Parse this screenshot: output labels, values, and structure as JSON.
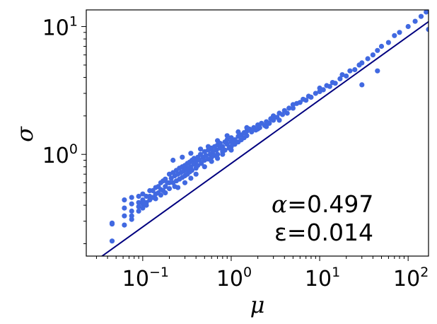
{
  "chart_data": {
    "type": "scatter",
    "title": "",
    "xlabel": "μ",
    "ylabel": "σ",
    "x_scale": "log",
    "y_scale": "log",
    "xlim": [
      0.023,
      170
    ],
    "ylim": [
      0.16,
      13.5
    ],
    "grid": false,
    "legend": "none",
    "x_ticks": [
      {
        "value": 0.1,
        "base": "10",
        "exp": "−1"
      },
      {
        "value": 1,
        "base": "10",
        "exp": "0"
      },
      {
        "value": 10,
        "base": "10",
        "exp": "1"
      },
      {
        "value": 100,
        "base": "10",
        "exp": "2"
      }
    ],
    "y_ticks": [
      {
        "value": 1,
        "base": "10",
        "exp": "0"
      },
      {
        "value": 10,
        "base": "10",
        "exp": "1"
      }
    ],
    "fit_line": {
      "slope": 0.497,
      "intercept_at_1": 0.85,
      "color": "#00007f"
    },
    "point_color": "#4169e1",
    "series": [
      {
        "points": [
          [
            0.045,
            0.29
          ],
          [
            0.045,
            0.21
          ],
          [
            0.045,
            0.285
          ],
          [
            0.062,
            0.33
          ],
          [
            0.062,
            0.44
          ],
          [
            0.062,
            0.38
          ],
          [
            0.062,
            0.28
          ],
          [
            0.075,
            0.46
          ],
          [
            0.075,
            0.41
          ],
          [
            0.075,
            0.36
          ],
          [
            0.075,
            0.33
          ],
          [
            0.075,
            0.31
          ],
          [
            0.09,
            0.47
          ],
          [
            0.09,
            0.42
          ],
          [
            0.09,
            0.39
          ],
          [
            0.09,
            0.36
          ],
          [
            0.1,
            0.49
          ],
          [
            0.1,
            0.44
          ],
          [
            0.1,
            0.41
          ],
          [
            0.1,
            0.38
          ],
          [
            0.11,
            0.47
          ],
          [
            0.11,
            0.42
          ],
          [
            0.11,
            0.4
          ],
          [
            0.12,
            0.52
          ],
          [
            0.12,
            0.47
          ],
          [
            0.12,
            0.44
          ],
          [
            0.13,
            0.52
          ],
          [
            0.13,
            0.46
          ],
          [
            0.14,
            0.55
          ],
          [
            0.14,
            0.49
          ],
          [
            0.14,
            0.45
          ],
          [
            0.15,
            0.56
          ],
          [
            0.15,
            0.5
          ],
          [
            0.16,
            0.6
          ],
          [
            0.16,
            0.53
          ],
          [
            0.16,
            0.48
          ],
          [
            0.17,
            0.62
          ],
          [
            0.17,
            0.52
          ],
          [
            0.18,
            0.64
          ],
          [
            0.18,
            0.56
          ],
          [
            0.18,
            0.5
          ],
          [
            0.19,
            0.6
          ],
          [
            0.2,
            0.7
          ],
          [
            0.2,
            0.6
          ],
          [
            0.2,
            0.54
          ],
          [
            0.21,
            0.65
          ],
          [
            0.22,
            0.72
          ],
          [
            0.22,
            0.6
          ],
          [
            0.23,
            0.68
          ],
          [
            0.23,
            0.56
          ],
          [
            0.24,
            0.75
          ],
          [
            0.24,
            0.62
          ],
          [
            0.25,
            0.7
          ],
          [
            0.26,
            0.78
          ],
          [
            0.26,
            0.64
          ],
          [
            0.27,
            0.72
          ],
          [
            0.28,
            0.8
          ],
          [
            0.28,
            0.66
          ],
          [
            0.29,
            0.74
          ],
          [
            0.3,
            0.82
          ],
          [
            0.3,
            0.68
          ],
          [
            0.31,
            0.76
          ],
          [
            0.32,
            0.85
          ],
          [
            0.32,
            0.7
          ],
          [
            0.33,
            0.78
          ],
          [
            0.34,
            0.87
          ],
          [
            0.34,
            0.73
          ],
          [
            0.35,
            0.8
          ],
          [
            0.36,
            0.9
          ],
          [
            0.36,
            0.75
          ],
          [
            0.38,
            0.84
          ],
          [
            0.38,
            0.93
          ],
          [
            0.4,
            0.78
          ],
          [
            0.4,
            0.88
          ],
          [
            0.42,
            0.95
          ],
          [
            0.42,
            0.82
          ],
          [
            0.44,
            0.9
          ],
          [
            0.45,
            1.0
          ],
          [
            0.46,
            0.85
          ],
          [
            0.48,
            0.95
          ],
          [
            0.5,
            1.05
          ],
          [
            0.5,
            0.9
          ],
          [
            0.52,
            0.98
          ],
          [
            0.55,
            1.08
          ],
          [
            0.55,
            0.92
          ],
          [
            0.58,
            1.0
          ],
          [
            0.6,
            1.12
          ],
          [
            0.6,
            0.95
          ],
          [
            0.62,
            1.05
          ],
          [
            0.65,
            1.15
          ],
          [
            0.65,
            0.98
          ],
          [
            0.68,
            1.08
          ],
          [
            0.7,
            1.18
          ],
          [
            0.7,
            1.0
          ],
          [
            0.75,
            1.12
          ],
          [
            0.75,
            1.22
          ],
          [
            0.8,
            1.05
          ],
          [
            0.8,
            1.15
          ],
          [
            0.85,
            1.25
          ],
          [
            0.85,
            1.08
          ],
          [
            0.9,
            1.2
          ],
          [
            0.9,
            1.3
          ],
          [
            0.95,
            1.12
          ],
          [
            1.0,
            1.25
          ],
          [
            1.0,
            1.35
          ],
          [
            1.0,
            1.15
          ],
          [
            1.1,
            1.3
          ],
          [
            1.1,
            1.2
          ],
          [
            1.2,
            1.38
          ],
          [
            1.2,
            1.25
          ],
          [
            1.3,
            1.42
          ],
          [
            1.3,
            1.3
          ],
          [
            1.4,
            1.48
          ],
          [
            1.4,
            1.35
          ],
          [
            1.5,
            1.52
          ],
          [
            1.5,
            1.4
          ],
          [
            1.6,
            1.58
          ],
          [
            1.7,
            1.5
          ],
          [
            1.8,
            1.62
          ],
          [
            1.9,
            1.55
          ],
          [
            2.0,
            1.7
          ],
          [
            2.1,
            1.62
          ],
          [
            2.2,
            1.75
          ],
          [
            2.4,
            1.68
          ],
          [
            2.5,
            1.8
          ],
          [
            2.7,
            1.75
          ],
          [
            2.8,
            1.9
          ],
          [
            3.0,
            1.85
          ],
          [
            3.0,
            2.0
          ],
          [
            3.3,
            1.95
          ],
          [
            3.5,
            2.1
          ],
          [
            3.8,
            2.05
          ],
          [
            4.0,
            2.2
          ],
          [
            4.3,
            2.1
          ],
          [
            4.5,
            2.3
          ],
          [
            5.0,
            2.3
          ],
          [
            5.0,
            2.45
          ],
          [
            5.5,
            2.5
          ],
          [
            6.0,
            2.55
          ],
          [
            6.5,
            2.7
          ],
          [
            7.0,
            2.65
          ],
          [
            7.5,
            2.85
          ],
          [
            8.0,
            2.8
          ],
          [
            9.0,
            3.0
          ],
          [
            10,
            3.1
          ],
          [
            10,
            3.3
          ],
          [
            11,
            3.2
          ],
          [
            12,
            3.45
          ],
          [
            13,
            3.4
          ],
          [
            14,
            3.65
          ],
          [
            15,
            3.6
          ],
          [
            17,
            3.9
          ],
          [
            18,
            4.2
          ],
          [
            20,
            4.1
          ],
          [
            22,
            4.5
          ],
          [
            25,
            4.6
          ],
          [
            28,
            5.0
          ],
          [
            30,
            5.2
          ],
          [
            35,
            5.6
          ],
          [
            40,
            6.0
          ],
          [
            45,
            6.5
          ],
          [
            50,
            7.0
          ],
          [
            60,
            7.5
          ],
          [
            70,
            8.5
          ],
          [
            80,
            9.0
          ],
          [
            100,
            10
          ],
          [
            120,
            11
          ],
          [
            140,
            12
          ],
          [
            160,
            13
          ],
          [
            170,
            9.5
          ],
          [
            45,
            4.5
          ],
          [
            30,
            3.5
          ],
          [
            0.25,
            0.55
          ],
          [
            0.3,
            0.6
          ],
          [
            0.35,
            0.65
          ],
          [
            0.4,
            0.7
          ],
          [
            0.5,
            0.8
          ],
          [
            0.6,
            0.88
          ],
          [
            0.7,
            0.93
          ],
          [
            0.8,
            1.0
          ],
          [
            1.0,
            1.08
          ],
          [
            0.22,
            0.9
          ],
          [
            0.28,
            0.95
          ],
          [
            0.35,
            1.02
          ],
          [
            0.45,
            1.1
          ],
          [
            0.55,
            1.15
          ],
          [
            0.7,
            1.28
          ],
          [
            0.9,
            1.4
          ],
          [
            1.2,
            1.5
          ],
          [
            1.5,
            1.62
          ],
          [
            2.0,
            1.58
          ],
          [
            2.5,
            1.65
          ],
          [
            3.5,
            1.85
          ]
        ]
      }
    ],
    "annotations": [
      {
        "symbol": "α",
        "text": "α =0.497",
        "value": "=0.497"
      },
      {
        "symbol": "ε",
        "text": "ε =0.014",
        "value": "=0.014"
      }
    ]
  }
}
